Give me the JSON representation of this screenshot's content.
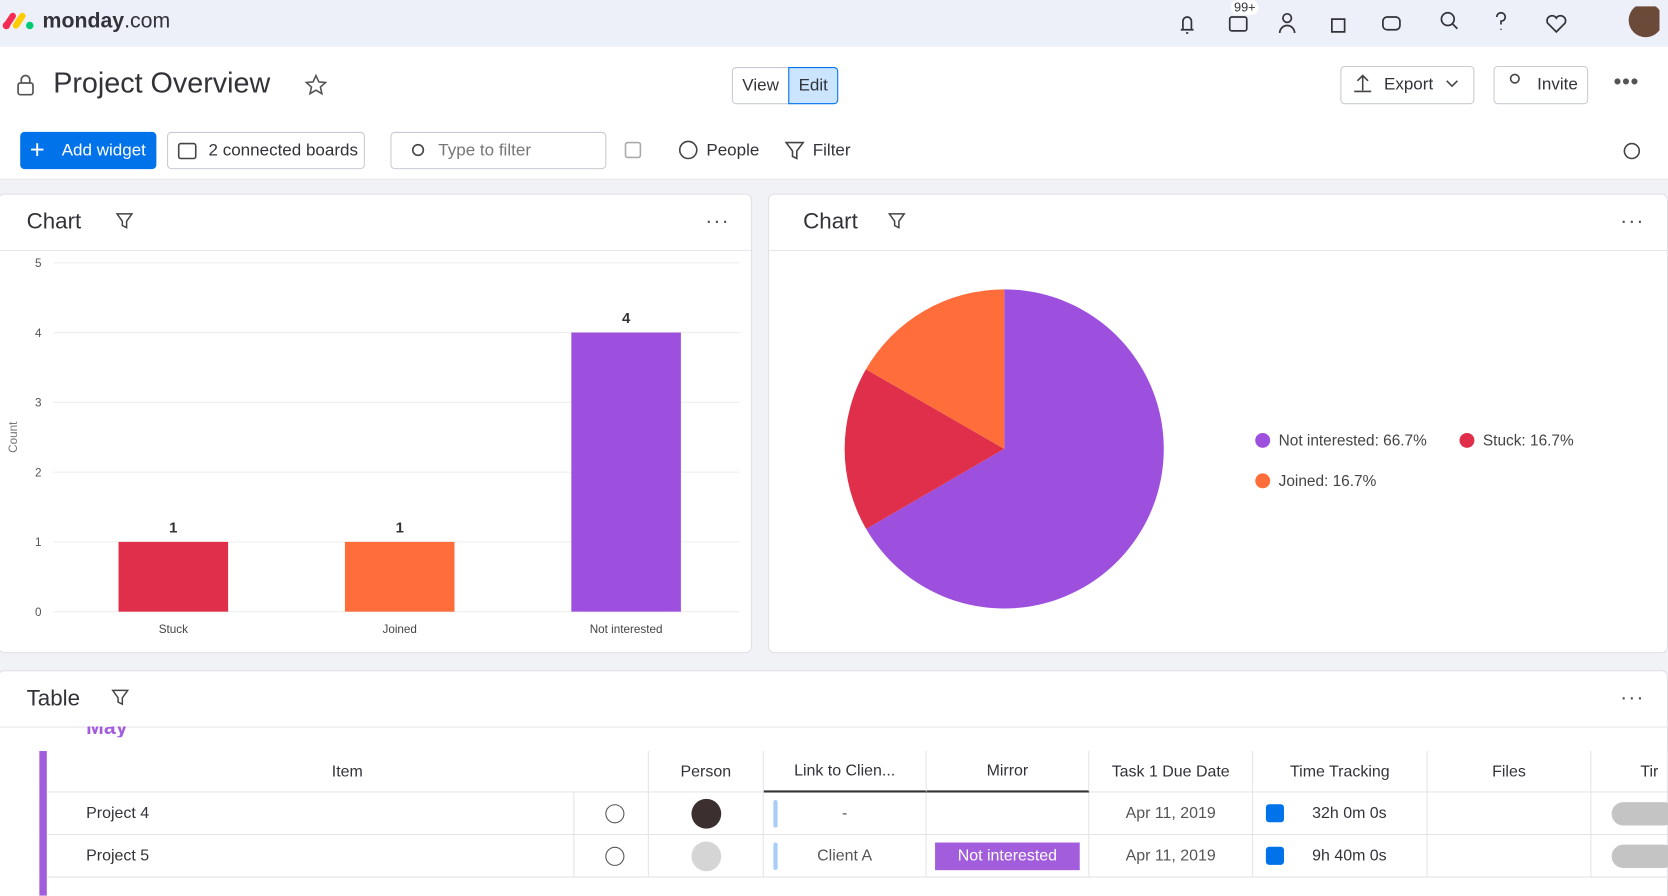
{
  "header": {
    "logo": "monday",
    "logo_suffix": ".com",
    "notification_count": "99+"
  },
  "page": {
    "title": "Project Overview",
    "view": "View",
    "edit": "Edit",
    "export": "Export",
    "invite": "Invite"
  },
  "toolbar": {
    "add_widget": "Add widget",
    "boards": "2 connected boards",
    "filter_placeholder": "Type to filter",
    "people": "People",
    "filter": "Filter"
  },
  "chart_data": [
    {
      "type": "bar",
      "title": "Chart",
      "ylabel": "Count",
      "categories": [
        "Stuck",
        "Joined",
        "Not interested"
      ],
      "values": [
        1,
        1,
        4
      ],
      "colors": [
        "#df2f4a",
        "#ff6d3b",
        "#9d50dd"
      ],
      "ylim": [
        0,
        5
      ],
      "yticks": [
        0,
        1,
        2,
        3,
        4,
        5
      ],
      "grid": true
    },
    {
      "type": "pie",
      "title": "Chart",
      "values": [
        66.7,
        16.7,
        16.7
      ],
      "value_labels": [
        "Not interested: 66.7%",
        "Stuck: 16.7%",
        "Joined: 16.7%"
      ],
      "colors": [
        "#9d50dd",
        "#df2f4a",
        "#ff6d3b"
      ],
      "legend": "right"
    }
  ],
  "table_widget": {
    "title": "Table",
    "group": "May",
    "columns": [
      "Item",
      "Person",
      "Link to Clien...",
      "Mirror",
      "Task 1 Due Date",
      "Time Tracking",
      "Files",
      "Tir"
    ],
    "rows": [
      {
        "item": "Project 4",
        "link": "-",
        "date": "Apr 11, 2019",
        "time": "32h 0m 0s"
      },
      {
        "item": "Project 5",
        "link": "Client A",
        "mirror": "Not interested",
        "date": "Apr 11, 2019",
        "time": "9h 40m 0s"
      }
    ]
  }
}
